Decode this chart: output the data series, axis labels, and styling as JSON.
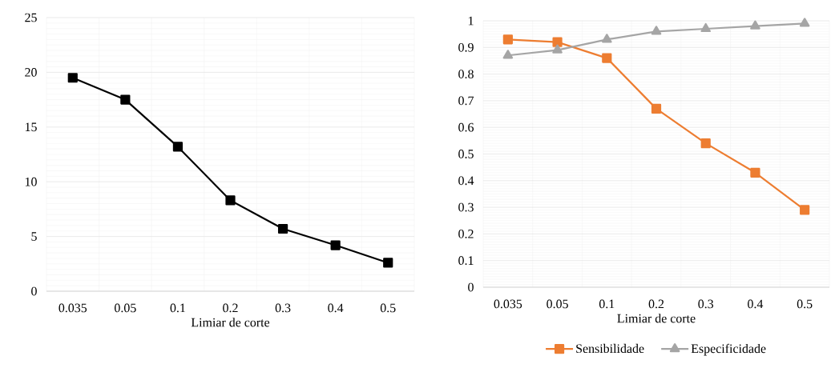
{
  "chart_data": [
    {
      "type": "line",
      "xlabel": "Limiar de corte",
      "categories": [
        "0.035",
        "0.05",
        "0.1",
        "0.2",
        "0.3",
        "0.4",
        "0.5"
      ],
      "series": [
        {
          "color": "#000000",
          "values": [
            19.5,
            17.5,
            13.2,
            8.3,
            5.7,
            4.2,
            2.6
          ]
        }
      ],
      "ylim": [
        0,
        25
      ],
      "yticks": [
        0,
        5,
        10,
        15,
        20,
        25
      ],
      "grid": true,
      "marker": "square",
      "legend": false
    },
    {
      "type": "line",
      "xlabel": "Limiar de corte",
      "categories": [
        "0.035",
        "0.05",
        "0.1",
        "0.2",
        "0.3",
        "0.4",
        "0.5"
      ],
      "series": [
        {
          "name": "Sensibilidade",
          "color": "#ed7d31",
          "marker": "square",
          "values": [
            0.93,
            0.92,
            0.86,
            0.67,
            0.54,
            0.43,
            0.29
          ]
        },
        {
          "name": "Especificidade",
          "color": "#a5a5a5",
          "marker": "triangle",
          "values": [
            0.87,
            0.89,
            0.93,
            0.96,
            0.97,
            0.98,
            0.99
          ]
        }
      ],
      "ylim": [
        0,
        1
      ],
      "yticks": [
        0,
        0.1,
        0.2,
        0.3,
        0.4,
        0.5,
        0.6,
        0.7,
        0.8,
        0.9,
        1
      ],
      "grid": true,
      "legend": "bottom"
    }
  ]
}
